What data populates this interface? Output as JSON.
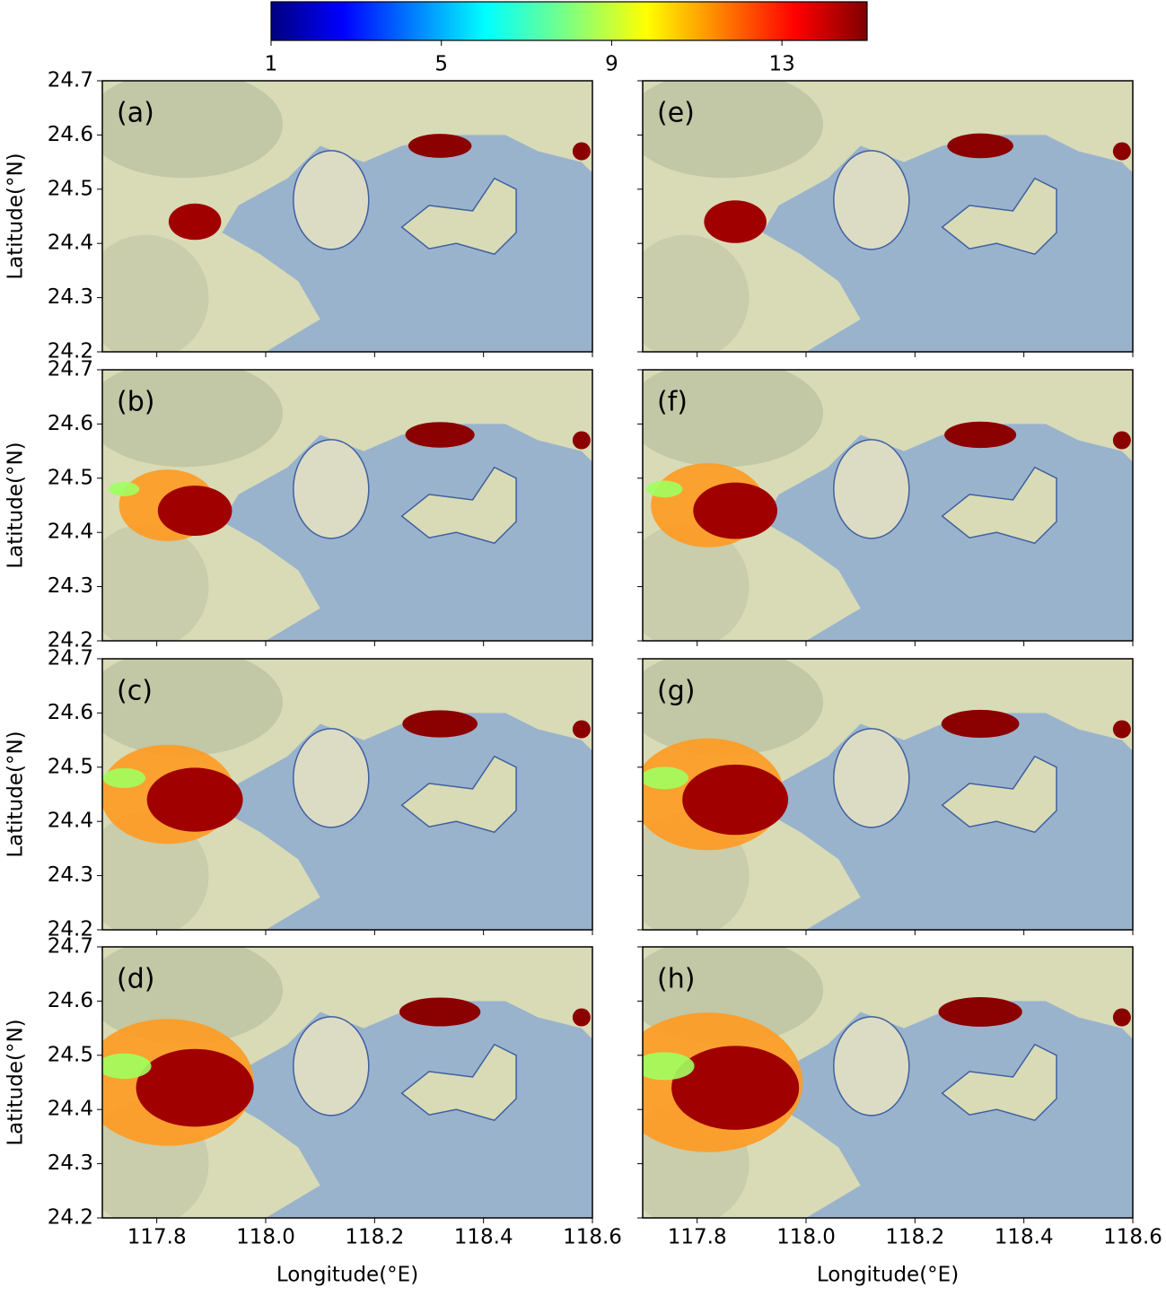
{
  "chart_data": {
    "type": "map",
    "colorbar": {
      "lim": [
        1,
        15
      ],
      "ticks": [
        1,
        5,
        9,
        13
      ]
    },
    "xlabel": "Longitude(°E)",
    "ylabel": "Latitude(°N)",
    "xlim": [
      117.7,
      118.6
    ],
    "xticks": [
      117.8,
      {
        "value": 118.0,
        "label": "118.0"
      },
      118.2,
      118.4,
      118.6
    ],
    "ylim": [
      24.2,
      24.7
    ],
    "yticks": [
      24.2,
      24.3,
      24.4,
      24.5,
      24.6,
      24.7
    ],
    "panels": [
      "(a)",
      "(b)",
      "(c)",
      "(d)",
      "(e)",
      "(f)",
      "(g)",
      "(h)"
    ]
  }
}
